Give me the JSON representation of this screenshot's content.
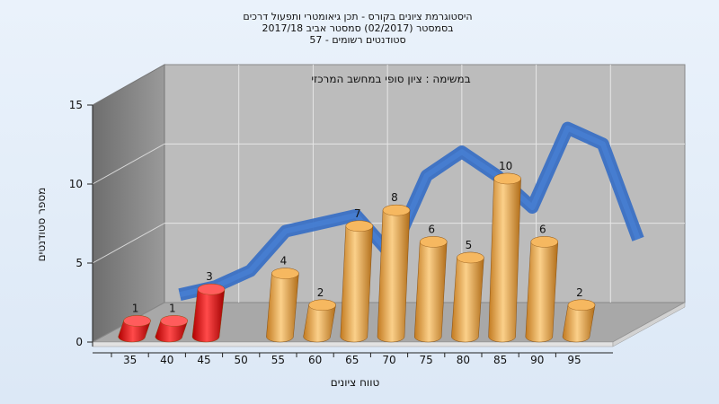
{
  "chart_data": {
    "type": "bar",
    "title_lines": [
      "היסטוגרמת ציונים בקורס - תכן גיאומטרי ותפעול דרכים",
      "בסמסטר  (02/2017)  סמסטר אביב 2017/18",
      "סטודנטים רשומים - 57"
    ],
    "subtitle": "במשימה : ציון סופי במחשב המרכזי",
    "xlabel": "טווח ציונים",
    "ylabel": "מספר סטודנטים",
    "categories": [
      "35",
      "40",
      "45",
      "50",
      "55",
      "60",
      "65",
      "70",
      "75",
      "80",
      "85",
      "90",
      "95"
    ],
    "values": [
      1,
      1,
      3,
      null,
      4,
      2,
      7,
      8,
      6,
      5,
      10,
      6,
      2
    ],
    "bar_colors": [
      "#e01818",
      "#e01818",
      "#e01818",
      null,
      "#e8a040",
      "#e8a040",
      "#e8a040",
      "#e8a040",
      "#e8a040",
      "#e8a040",
      "#e8a040",
      "#e8a040",
      "#e8a040"
    ],
    "trend_line": [
      0.5,
      1,
      2,
      4.5,
      5,
      5.5,
      3,
      8,
      9.5,
      8,
      6,
      11,
      10,
      4
    ],
    "y_ticks": [
      0,
      5,
      10,
      15
    ],
    "ylim": [
      0,
      15
    ],
    "grid": true,
    "colors": {
      "fail": "#e01818",
      "pass": "#e8a040",
      "trend": "#3a70c4",
      "wall": "#b8b8b8"
    }
  }
}
